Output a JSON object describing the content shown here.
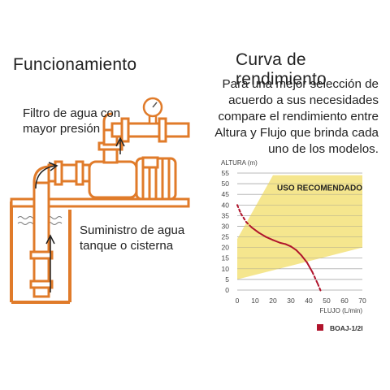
{
  "left": {
    "heading": "Funcionamiento",
    "filter_label_1": "Filtro de agua con",
    "filter_label_2": "mayor presión",
    "supply_label_1": "Suministro de agua",
    "supply_label_2": "tanque o cisterna"
  },
  "right": {
    "heading": "Curva de rendimiento",
    "desc_1": "Para una mejor selección de",
    "desc_2": "acuerdo a sus necesidades",
    "desc_3": "compare el rendimiento entre",
    "desc_4": "Altura y Flujo que brinda cada",
    "desc_5": "uno de los modelos."
  },
  "colors": {
    "pipe": "#e07b2a",
    "zone_fill": "#f3e27a",
    "curve": "#b0142c",
    "grid": "#9a9a9a"
  },
  "chart_data": {
    "type": "line",
    "ylabel": "ALTURA (m)",
    "xlabel": "FLUJO (L/min)",
    "xlim": [
      0,
      70
    ],
    "ylim": [
      0,
      55
    ],
    "x_ticks": [
      0,
      10,
      20,
      30,
      40,
      50,
      60,
      70
    ],
    "y_ticks": [
      0,
      5,
      10,
      15,
      20,
      25,
      30,
      35,
      40,
      45,
      50,
      55
    ],
    "grid": "horizontal",
    "zone_label": "USO RECOMENDADO",
    "zone_polygon": [
      [
        0,
        5
      ],
      [
        70,
        20
      ],
      [
        70,
        54
      ],
      [
        20,
        54
      ],
      [
        0,
        24
      ]
    ],
    "series": [
      {
        "name": "BOAJ-1/2I",
        "x": [
          0,
          2,
          5,
          8,
          12,
          16,
          20,
          24,
          27,
          30,
          33,
          36,
          39,
          42,
          45,
          47
        ],
        "y": [
          40,
          36,
          32,
          29.5,
          27,
          25,
          23.5,
          22.2,
          21.6,
          20.5,
          18.8,
          16.2,
          13,
          8.5,
          3,
          -1
        ],
        "dashed_ranges": [
          [
            0,
            8
          ],
          [
            42,
            47
          ]
        ]
      }
    ],
    "legend_position": "bottom-right"
  }
}
